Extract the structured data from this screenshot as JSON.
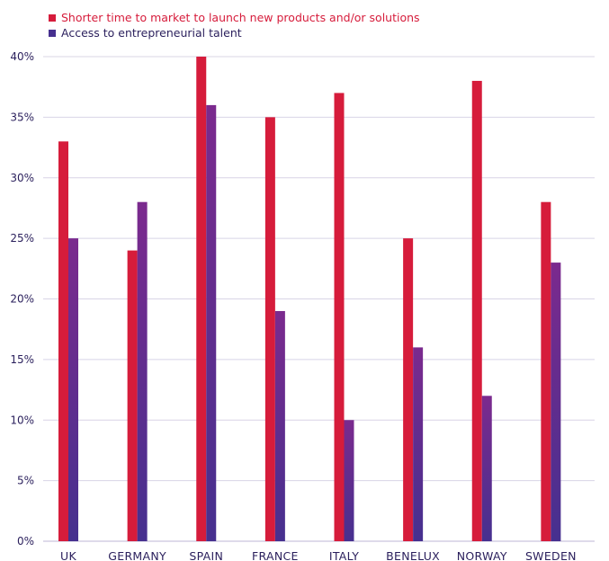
{
  "colors": {
    "series1": "#d61c3b",
    "series2_top": "#7b2a8e",
    "series2_bottom": "#46308f",
    "grid": "#d8d4e6",
    "text": "#2a1f5c"
  },
  "legend": {
    "item1": "Shorter time to market to launch new products and/or solutions",
    "item2": "Access to entrepreneurial talent"
  },
  "chart_data": {
    "type": "bar",
    "categories": [
      "UK",
      "GERMANY",
      "SPAIN",
      "FRANCE",
      "ITALY",
      "BENELUX",
      "NORWAY",
      "SWEDEN"
    ],
    "series": [
      {
        "name": "Shorter time to market to launch new products and/or solutions",
        "values": [
          33,
          24,
          40,
          35,
          37,
          25,
          38,
          28
        ]
      },
      {
        "name": "Access to entrepreneurial talent",
        "values": [
          25,
          28,
          36,
          19,
          10,
          16,
          12,
          23
        ]
      }
    ],
    "ylim": [
      0,
      40
    ],
    "yticks": [
      "0%",
      "5%",
      "10%",
      "15%",
      "20%",
      "25%",
      "30%",
      "35%",
      "40%"
    ],
    "grid": true,
    "legend_position": "top-left"
  }
}
